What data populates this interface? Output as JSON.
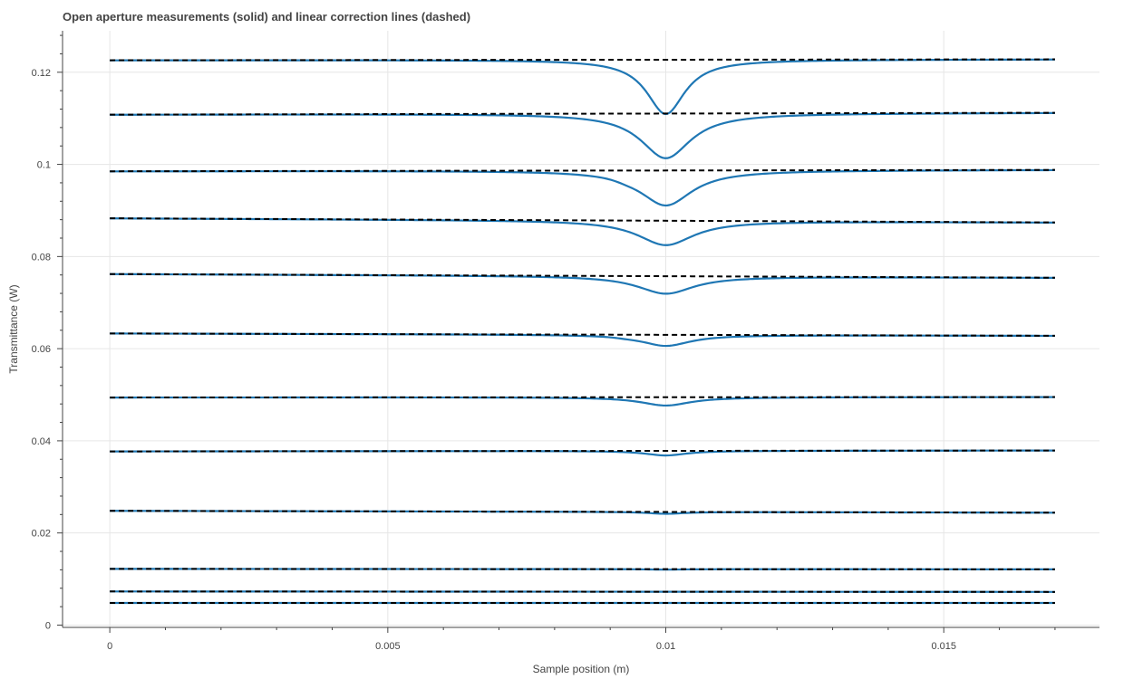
{
  "chart_data": {
    "type": "line",
    "title": "Open aperture measurements (solid) and linear correction lines (dashed)",
    "xlabel": "Sample position (m)",
    "ylabel": "Transmittance (W)",
    "xlim": [
      -0.00085,
      0.0178
    ],
    "ylim": [
      -0.0005,
      0.129
    ],
    "xticks": [
      0,
      0.005,
      0.01,
      0.015
    ],
    "xtick_labels": [
      "0",
      "0.005",
      "0.01",
      "0.015"
    ],
    "xminor_step": 0.001,
    "yticks": [
      0,
      0.02,
      0.04,
      0.06,
      0.08,
      0.1,
      0.12
    ],
    "ytick_labels": [
      "0",
      "0.02",
      "0.04",
      "0.06",
      "0.08",
      "0.1",
      "0.12"
    ],
    "yminor_step": 0.004,
    "grid": true,
    "legend": "none",
    "colors": {
      "measurement": "#1f77b4",
      "correction": "#000000",
      "grid": "#e6e6e6",
      "axis": "#444444"
    },
    "x_range": [
      0,
      0.017
    ],
    "dip_center": 0.01,
    "series": [
      {
        "start": 0.1226,
        "end": 0.1228,
        "dip": 0.0118,
        "width": 0.00042,
        "kink": 0
      },
      {
        "start": 0.1108,
        "end": 0.1112,
        "dip": 0.0097,
        "width": 0.00055,
        "kink": 0
      },
      {
        "start": 0.0985,
        "end": 0.0988,
        "dip": 0.0076,
        "width": 0.00058,
        "kink": 0.0009
      },
      {
        "start": 0.0883,
        "end": 0.0874,
        "dip": 0.0053,
        "width": 0.00062,
        "kink": 0
      },
      {
        "start": 0.0762,
        "end": 0.0754,
        "dip": 0.0038,
        "width": 0.00062,
        "kink": 0
      },
      {
        "start": 0.0633,
        "end": 0.0628,
        "dip": 0.0024,
        "width": 0.00055,
        "kink": 0.0004
      },
      {
        "start": 0.0494,
        "end": 0.0495,
        "dip": 0.0018,
        "width": 0.00055,
        "kink": 0
      },
      {
        "start": 0.0377,
        "end": 0.0379,
        "dip": 0.001,
        "width": 0.00045,
        "kink": 0
      },
      {
        "start": 0.0248,
        "end": 0.0244,
        "dip": 0.0004,
        "width": 0.0004,
        "kink": 0
      },
      {
        "start": 0.0122,
        "end": 0.0121,
        "dip": 0.0001,
        "width": 0.0004,
        "kink": 0
      },
      {
        "start": 0.0073,
        "end": 0.0072,
        "dip": 0.0,
        "width": 0.0004,
        "kink": 0
      },
      {
        "start": 0.0048,
        "end": 0.0048,
        "dip": 0.0,
        "width": 0.0004,
        "kink": 0
      }
    ]
  }
}
